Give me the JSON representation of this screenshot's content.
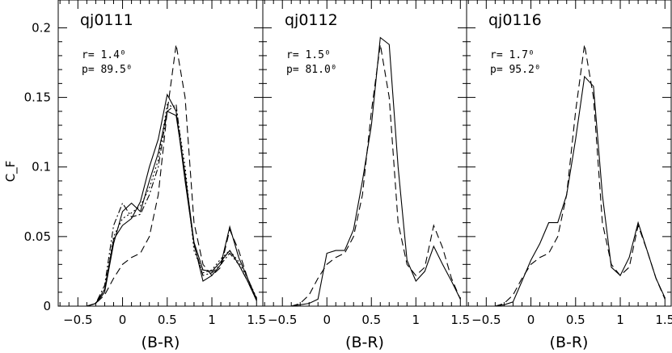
{
  "chart_data": {
    "type": "line",
    "ylabel": "C_F",
    "ylim": [
      0,
      0.22
    ],
    "xlim": [
      -0.72,
      1.57
    ],
    "yticks": [
      0,
      0.05,
      0.1,
      0.15,
      0.2
    ],
    "ytick_labels": [
      "0",
      "0.05",
      "0.1",
      "0.15",
      "0.2"
    ],
    "xticks": [
      -0.5,
      0,
      0.5,
      1,
      1.5
    ],
    "xtick_labels": [
      "−0.5",
      "0",
      "0.5",
      "1",
      "1.5"
    ],
    "grid": false,
    "panels": [
      {
        "title": "qj0111",
        "xlabel": "(B-R)",
        "annotation": [
          "r=  1.4⁰",
          "p=  89.5⁰"
        ],
        "series": [
          {
            "style": "dashed",
            "x": [
              -0.4,
              -0.3,
              -0.2,
              -0.1,
              0.0,
              0.1,
              0.2,
              0.3,
              0.4,
              0.5,
              0.6,
              0.7,
              0.8,
              0.9,
              1.0,
              1.1,
              1.2,
              1.3,
              1.4,
              1.5
            ],
            "values": [
              0,
              0.002,
              0.008,
              0.02,
              0.03,
              0.035,
              0.038,
              0.05,
              0.08,
              0.14,
              0.188,
              0.15,
              0.06,
              0.03,
              0.022,
              0.028,
              0.055,
              0.04,
              0.02,
              0.005
            ]
          },
          {
            "style": "solid",
            "x": [
              -0.4,
              -0.3,
              -0.2,
              -0.1,
              0.0,
              0.1,
              0.2,
              0.3,
              0.4,
              0.5,
              0.6,
              0.7,
              0.8,
              0.9,
              1.0,
              1.1,
              1.2,
              1.3,
              1.4,
              1.5
            ],
            "values": [
              0,
              0.002,
              0.012,
              0.048,
              0.058,
              0.063,
              0.075,
              0.1,
              0.12,
              0.152,
              0.14,
              0.09,
              0.045,
              0.018,
              0.022,
              0.03,
              0.057,
              0.035,
              0.02,
              0.005
            ]
          },
          {
            "style": "solid",
            "x": [
              -0.4,
              -0.3,
              -0.2,
              -0.1,
              0.0,
              0.1,
              0.2,
              0.3,
              0.4,
              0.5,
              0.6,
              0.7,
              0.8,
              0.9,
              1.0,
              1.1,
              1.2,
              1.3,
              1.4,
              1.5
            ],
            "values": [
              0,
              0.002,
              0.01,
              0.045,
              0.068,
              0.074,
              0.068,
              0.09,
              0.11,
              0.14,
              0.137,
              0.095,
              0.046,
              0.026,
              0.025,
              0.032,
              0.04,
              0.03,
              0.018,
              0.004
            ]
          },
          {
            "style": "dotted",
            "x": [
              -0.4,
              -0.3,
              -0.2,
              -0.1,
              0.0,
              0.1,
              0.2,
              0.3,
              0.4,
              0.5,
              0.6,
              0.7,
              0.8,
              0.9,
              1.0,
              1.1,
              1.2,
              1.3,
              1.4,
              1.5
            ],
            "values": [
              0,
              0.002,
              0.012,
              0.05,
              0.063,
              0.067,
              0.072,
              0.085,
              0.105,
              0.145,
              0.142,
              0.1,
              0.04,
              0.024,
              0.026,
              0.034,
              0.04,
              0.032,
              0.02,
              0.006
            ]
          },
          {
            "style": "dashdot",
            "x": [
              -0.4,
              -0.3,
              -0.2,
              -0.1,
              0.0,
              0.1,
              0.2,
              0.3,
              0.4,
              0.5,
              0.6,
              0.7,
              0.8,
              0.9,
              1.0,
              1.1,
              1.2,
              1.3,
              1.4,
              1.5
            ],
            "values": [
              0,
              0.002,
              0.015,
              0.058,
              0.074,
              0.064,
              0.066,
              0.08,
              0.1,
              0.14,
              0.145,
              0.092,
              0.044,
              0.022,
              0.024,
              0.03,
              0.038,
              0.03,
              0.018,
              0.004
            ]
          }
        ]
      },
      {
        "title": "qj0112",
        "xlabel": "(B-R)",
        "annotation": [
          "r=  1.5⁰",
          "p=  81.0⁰"
        ],
        "series": [
          {
            "style": "dashed",
            "x": [
              -0.4,
              -0.3,
              -0.2,
              -0.1,
              0.0,
              0.1,
              0.2,
              0.3,
              0.4,
              0.5,
              0.6,
              0.7,
              0.8,
              0.9,
              1.0,
              1.1,
              1.2,
              1.3,
              1.4,
              1.5
            ],
            "values": [
              0,
              0.002,
              0.008,
              0.02,
              0.03,
              0.035,
              0.038,
              0.05,
              0.08,
              0.14,
              0.188,
              0.15,
              0.06,
              0.03,
              0.022,
              0.028,
              0.058,
              0.042,
              0.02,
              0.005
            ]
          },
          {
            "style": "solid",
            "x": [
              -0.4,
              -0.3,
              -0.2,
              -0.1,
              0.0,
              0.1,
              0.2,
              0.3,
              0.4,
              0.5,
              0.6,
              0.7,
              0.8,
              0.9,
              1.0,
              1.1,
              1.2,
              1.3,
              1.4,
              1.5
            ],
            "values": [
              0,
              0.001,
              0.002,
              0.005,
              0.038,
              0.04,
              0.04,
              0.055,
              0.09,
              0.13,
              0.193,
              0.188,
              0.1,
              0.033,
              0.018,
              0.025,
              0.043,
              0.03,
              0.018,
              0.005
            ]
          }
        ]
      },
      {
        "title": "qj0116",
        "xlabel": "(B-R)",
        "annotation": [
          "r=  1.7⁰",
          "p=  95.2⁰"
        ],
        "series": [
          {
            "style": "dashed",
            "x": [
              -0.4,
              -0.3,
              -0.2,
              -0.1,
              0.0,
              0.1,
              0.2,
              0.3,
              0.4,
              0.5,
              0.6,
              0.7,
              0.8,
              0.9,
              1.0,
              1.1,
              1.2,
              1.3,
              1.4,
              1.5
            ],
            "values": [
              0,
              0.002,
              0.008,
              0.02,
              0.03,
              0.035,
              0.038,
              0.05,
              0.08,
              0.14,
              0.188,
              0.15,
              0.06,
              0.03,
              0.022,
              0.028,
              0.058,
              0.04,
              0.02,
              0.005
            ]
          },
          {
            "style": "solid",
            "x": [
              -0.4,
              -0.3,
              -0.2,
              -0.1,
              0.0,
              0.1,
              0.2,
              0.3,
              0.4,
              0.5,
              0.6,
              0.7,
              0.8,
              0.9,
              1.0,
              1.1,
              1.2,
              1.3,
              1.4,
              1.5
            ],
            "values": [
              0,
              0.001,
              0.003,
              0.018,
              0.033,
              0.045,
              0.06,
              0.06,
              0.08,
              0.12,
              0.165,
              0.158,
              0.08,
              0.028,
              0.022,
              0.035,
              0.06,
              0.04,
              0.02,
              0.006
            ]
          }
        ]
      }
    ]
  }
}
